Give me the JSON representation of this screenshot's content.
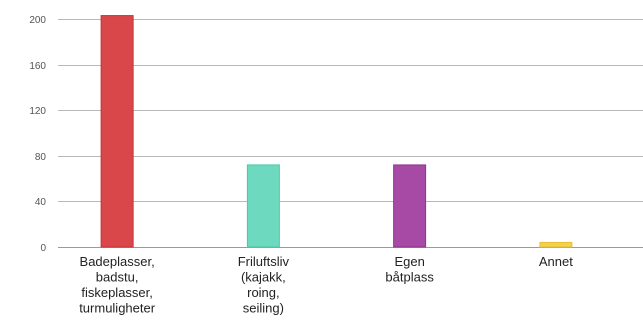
{
  "chart_data": {
    "type": "bar",
    "title": "",
    "xlabel": "",
    "ylabel": "",
    "ylim": [
      0,
      200
    ],
    "yticks": [
      0,
      40,
      80,
      120,
      160,
      200
    ],
    "grid": true,
    "categories": [
      [
        "Badeplasser,",
        "badstu,",
        "fiskeplasser,",
        "turmuligheter"
      ],
      [
        "Friluftsliv",
        "(kajakk,",
        "roing,",
        "seiling)"
      ],
      [
        "Egen",
        "båtplass"
      ],
      [
        "Annet"
      ]
    ],
    "values": [
      203,
      72,
      72,
      4
    ],
    "colors": [
      "#d9474b",
      "#6ddabf",
      "#a64aa6",
      "#f5d04a"
    ],
    "edge_colors": [
      "#c23438",
      "#4cc9a8",
      "#8e348e",
      "#e8bf35"
    ]
  }
}
